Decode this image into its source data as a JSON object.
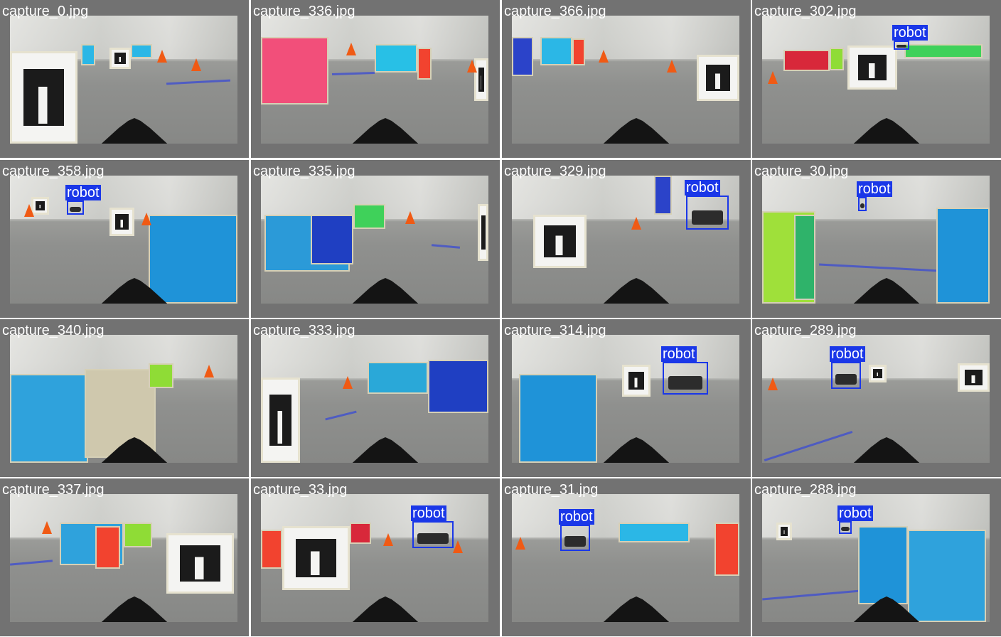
{
  "colors": {
    "tile_background": "#727272",
    "page_background": "#ffffff",
    "label_text": "#ffffff",
    "detection_box": "#1a37e8",
    "cone": "#f05a14"
  },
  "detection_class": "robot",
  "tiles": [
    {
      "filename": "capture_0.jpg",
      "detections": []
    },
    {
      "filename": "capture_336.jpg",
      "detections": []
    },
    {
      "filename": "capture_366.jpg",
      "detections": []
    },
    {
      "filename": "capture_302.jpg",
      "detections": [
        {
          "label": "robot"
        }
      ]
    },
    {
      "filename": "capture_358.jpg",
      "detections": [
        {
          "label": "robot"
        }
      ]
    },
    {
      "filename": "capture_335.jpg",
      "detections": []
    },
    {
      "filename": "capture_329.jpg",
      "detections": [
        {
          "label": "robot"
        }
      ]
    },
    {
      "filename": "capture_30.jpg",
      "detections": [
        {
          "label": "robot"
        }
      ]
    },
    {
      "filename": "capture_340.jpg",
      "detections": []
    },
    {
      "filename": "capture_333.jpg",
      "detections": []
    },
    {
      "filename": "capture_314.jpg",
      "detections": [
        {
          "label": "robot"
        }
      ]
    },
    {
      "filename": "capture_289.jpg",
      "detections": [
        {
          "label": "robot"
        }
      ]
    },
    {
      "filename": "capture_337.jpg",
      "detections": []
    },
    {
      "filename": "capture_33.jpg",
      "detections": [
        {
          "label": "robot"
        }
      ]
    },
    {
      "filename": "capture_31.jpg",
      "detections": [
        {
          "label": "robot"
        }
      ]
    },
    {
      "filename": "capture_288.jpg",
      "detections": [
        {
          "label": "robot"
        }
      ]
    }
  ]
}
